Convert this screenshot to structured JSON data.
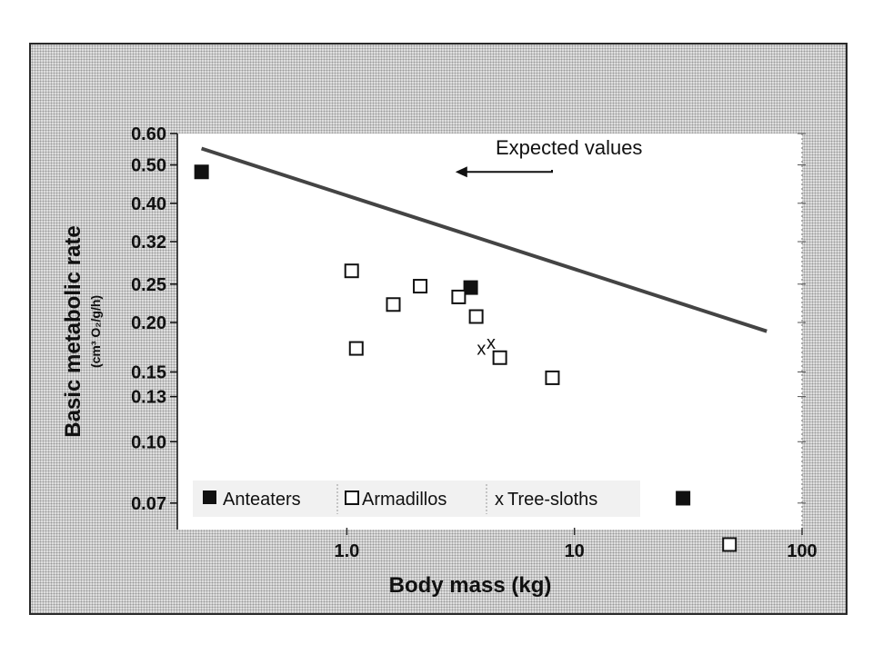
{
  "chart_data": {
    "type": "scatter",
    "xlabel": "Body mass (kg)",
    "ylabel": "Basic metabolic rate",
    "ylabel_unit": "(cm³ O₂/g/h)",
    "x_scale": "log",
    "y_scale": "log",
    "xlim": [
      0.18,
      100
    ],
    "ylim": [
      0.06,
      0.6
    ],
    "x_ticks": [
      {
        "value": 1,
        "label": "1.0"
      },
      {
        "value": 10,
        "label": "10"
      },
      {
        "value": 100,
        "label": "100"
      }
    ],
    "y_ticks": [
      {
        "value": 0.6,
        "label": "0.60"
      },
      {
        "value": 0.5,
        "label": "0.50"
      },
      {
        "value": 0.4,
        "label": "0.40"
      },
      {
        "value": 0.32,
        "label": "0.32"
      },
      {
        "value": 0.25,
        "label": "0.25"
      },
      {
        "value": 0.2,
        "label": "0.20"
      },
      {
        "value": 0.15,
        "label": "0.15"
      },
      {
        "value": 0.13,
        "label": "0.13"
      },
      {
        "value": 0.1,
        "label": "0.10"
      },
      {
        "value": 0.07,
        "label": "0.07"
      }
    ],
    "series": [
      {
        "name": "Anteaters",
        "marker": "filled-square",
        "points": [
          [
            0.23,
            0.48
          ],
          [
            3.5,
            0.245
          ],
          [
            30,
            0.072
          ]
        ]
      },
      {
        "name": "Armadillos",
        "marker": "open-square",
        "points": [
          [
            1.05,
            0.27
          ],
          [
            1.1,
            0.172
          ],
          [
            1.6,
            0.222
          ],
          [
            2.1,
            0.247
          ],
          [
            3.1,
            0.232
          ],
          [
            3.7,
            0.207
          ],
          [
            4.7,
            0.163
          ],
          [
            8,
            0.145
          ],
          [
            48,
            0.055
          ]
        ]
      },
      {
        "name": "Tree-sloths",
        "marker": "x",
        "points": [
          [
            3.9,
            0.172
          ],
          [
            4.3,
            0.178
          ]
        ]
      }
    ],
    "lines": [
      {
        "name": "Expected values",
        "points": [
          [
            0.23,
            0.55
          ],
          [
            70,
            0.19
          ]
        ]
      }
    ],
    "annotations": [
      {
        "text": "Expected values",
        "arrow_to": [
          3.0,
          0.48
        ]
      }
    ],
    "legend": {
      "position": "bottom-left",
      "items": [
        "Anteaters",
        "Armadillos",
        "Tree-sloths"
      ]
    },
    "grid": false,
    "colors": {
      "marker": "#111111",
      "expected_line": "#444444",
      "plot_background": "#ffffff",
      "frame_background": "#dedede"
    }
  }
}
